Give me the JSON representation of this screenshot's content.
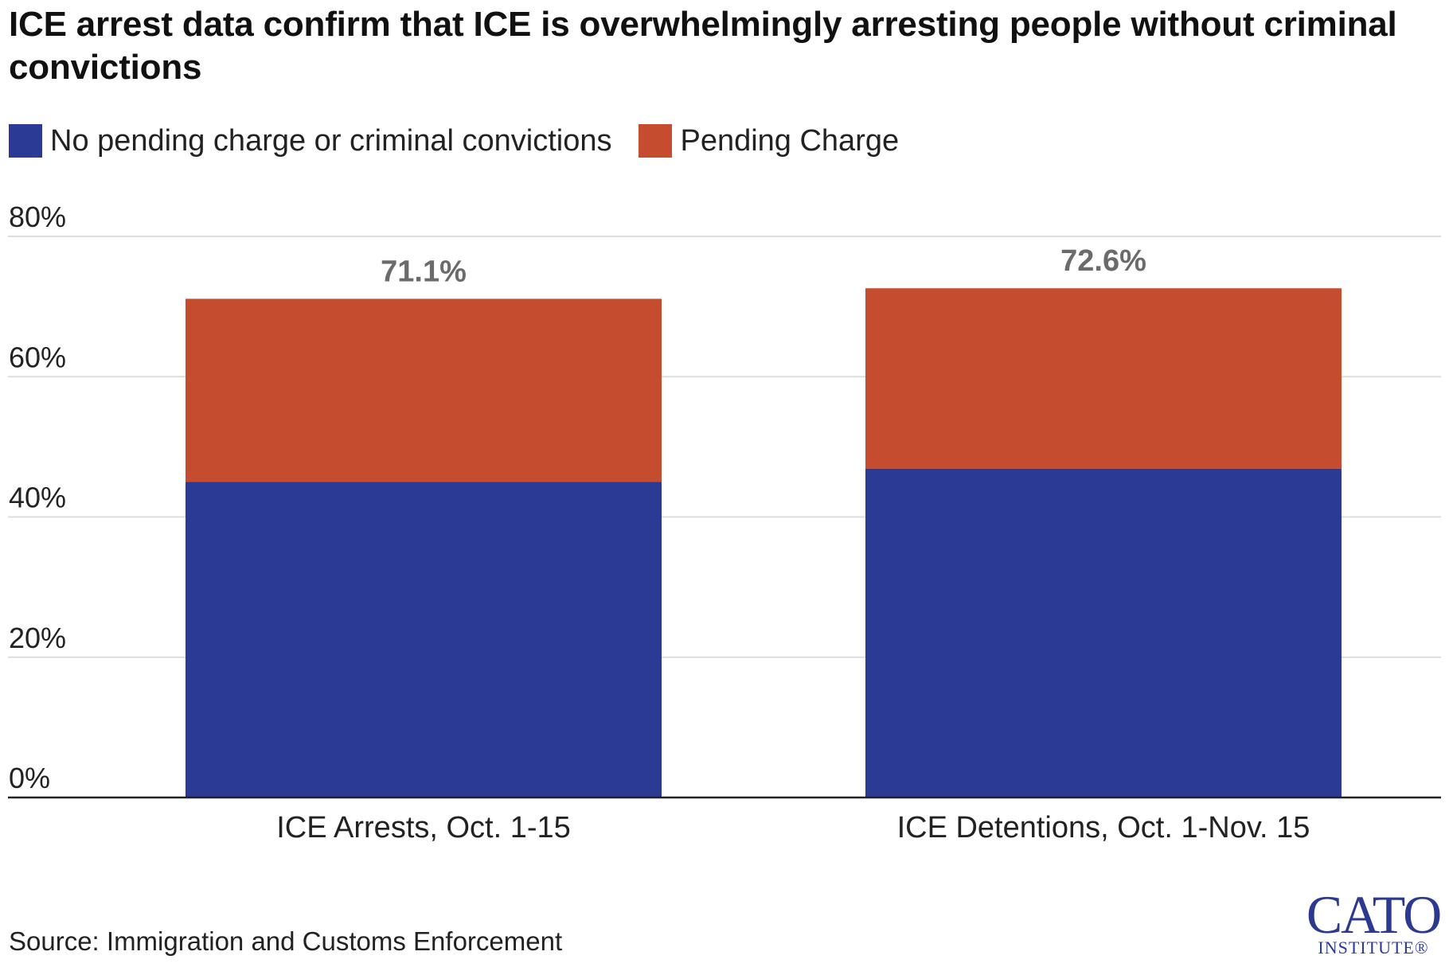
{
  "title": "ICE arrest data confirm that ICE is overwhelmingly arresting people without criminal convictions",
  "legend": [
    {
      "label": "No pending charge or criminal convictions",
      "color": "#2b3a94"
    },
    {
      "label": "Pending Charge",
      "color": "#c64c2f"
    }
  ],
  "source": "Source: Immigration and Customs Enforcement",
  "logo": {
    "main": "CATO",
    "sub": "INSTITUTE",
    "mark": "®"
  },
  "colors": {
    "no_charge": "#2b3a94",
    "pending": "#c64c2f",
    "grid": "#dddddd",
    "axis": "#222222",
    "total_label": "#6b6b6b",
    "logo": "#2b3990"
  },
  "chart_data": {
    "type": "bar",
    "stacked": true,
    "title": "ICE arrest data confirm that ICE is overwhelmingly arresting people without criminal convictions",
    "xlabel": "",
    "ylabel": "",
    "categories": [
      "ICE Arrests, Oct. 1-15",
      "ICE Detentions, Oct. 1-Nov. 15"
    ],
    "series": [
      {
        "name": "No pending charge or criminal convictions",
        "values": [
          45.0,
          46.9
        ]
      },
      {
        "name": "Pending Charge",
        "values": [
          26.1,
          25.7
        ]
      }
    ],
    "totals": [
      71.1,
      72.6
    ],
    "total_labels": [
      "71.1%",
      "72.6%"
    ],
    "ylim": [
      0,
      80
    ],
    "yticks": [
      0,
      20,
      40,
      60,
      80
    ],
    "ytick_labels": [
      "0%",
      "20%",
      "40%",
      "60%",
      "80%"
    ],
    "grid": true,
    "legend_position": "top-left"
  }
}
